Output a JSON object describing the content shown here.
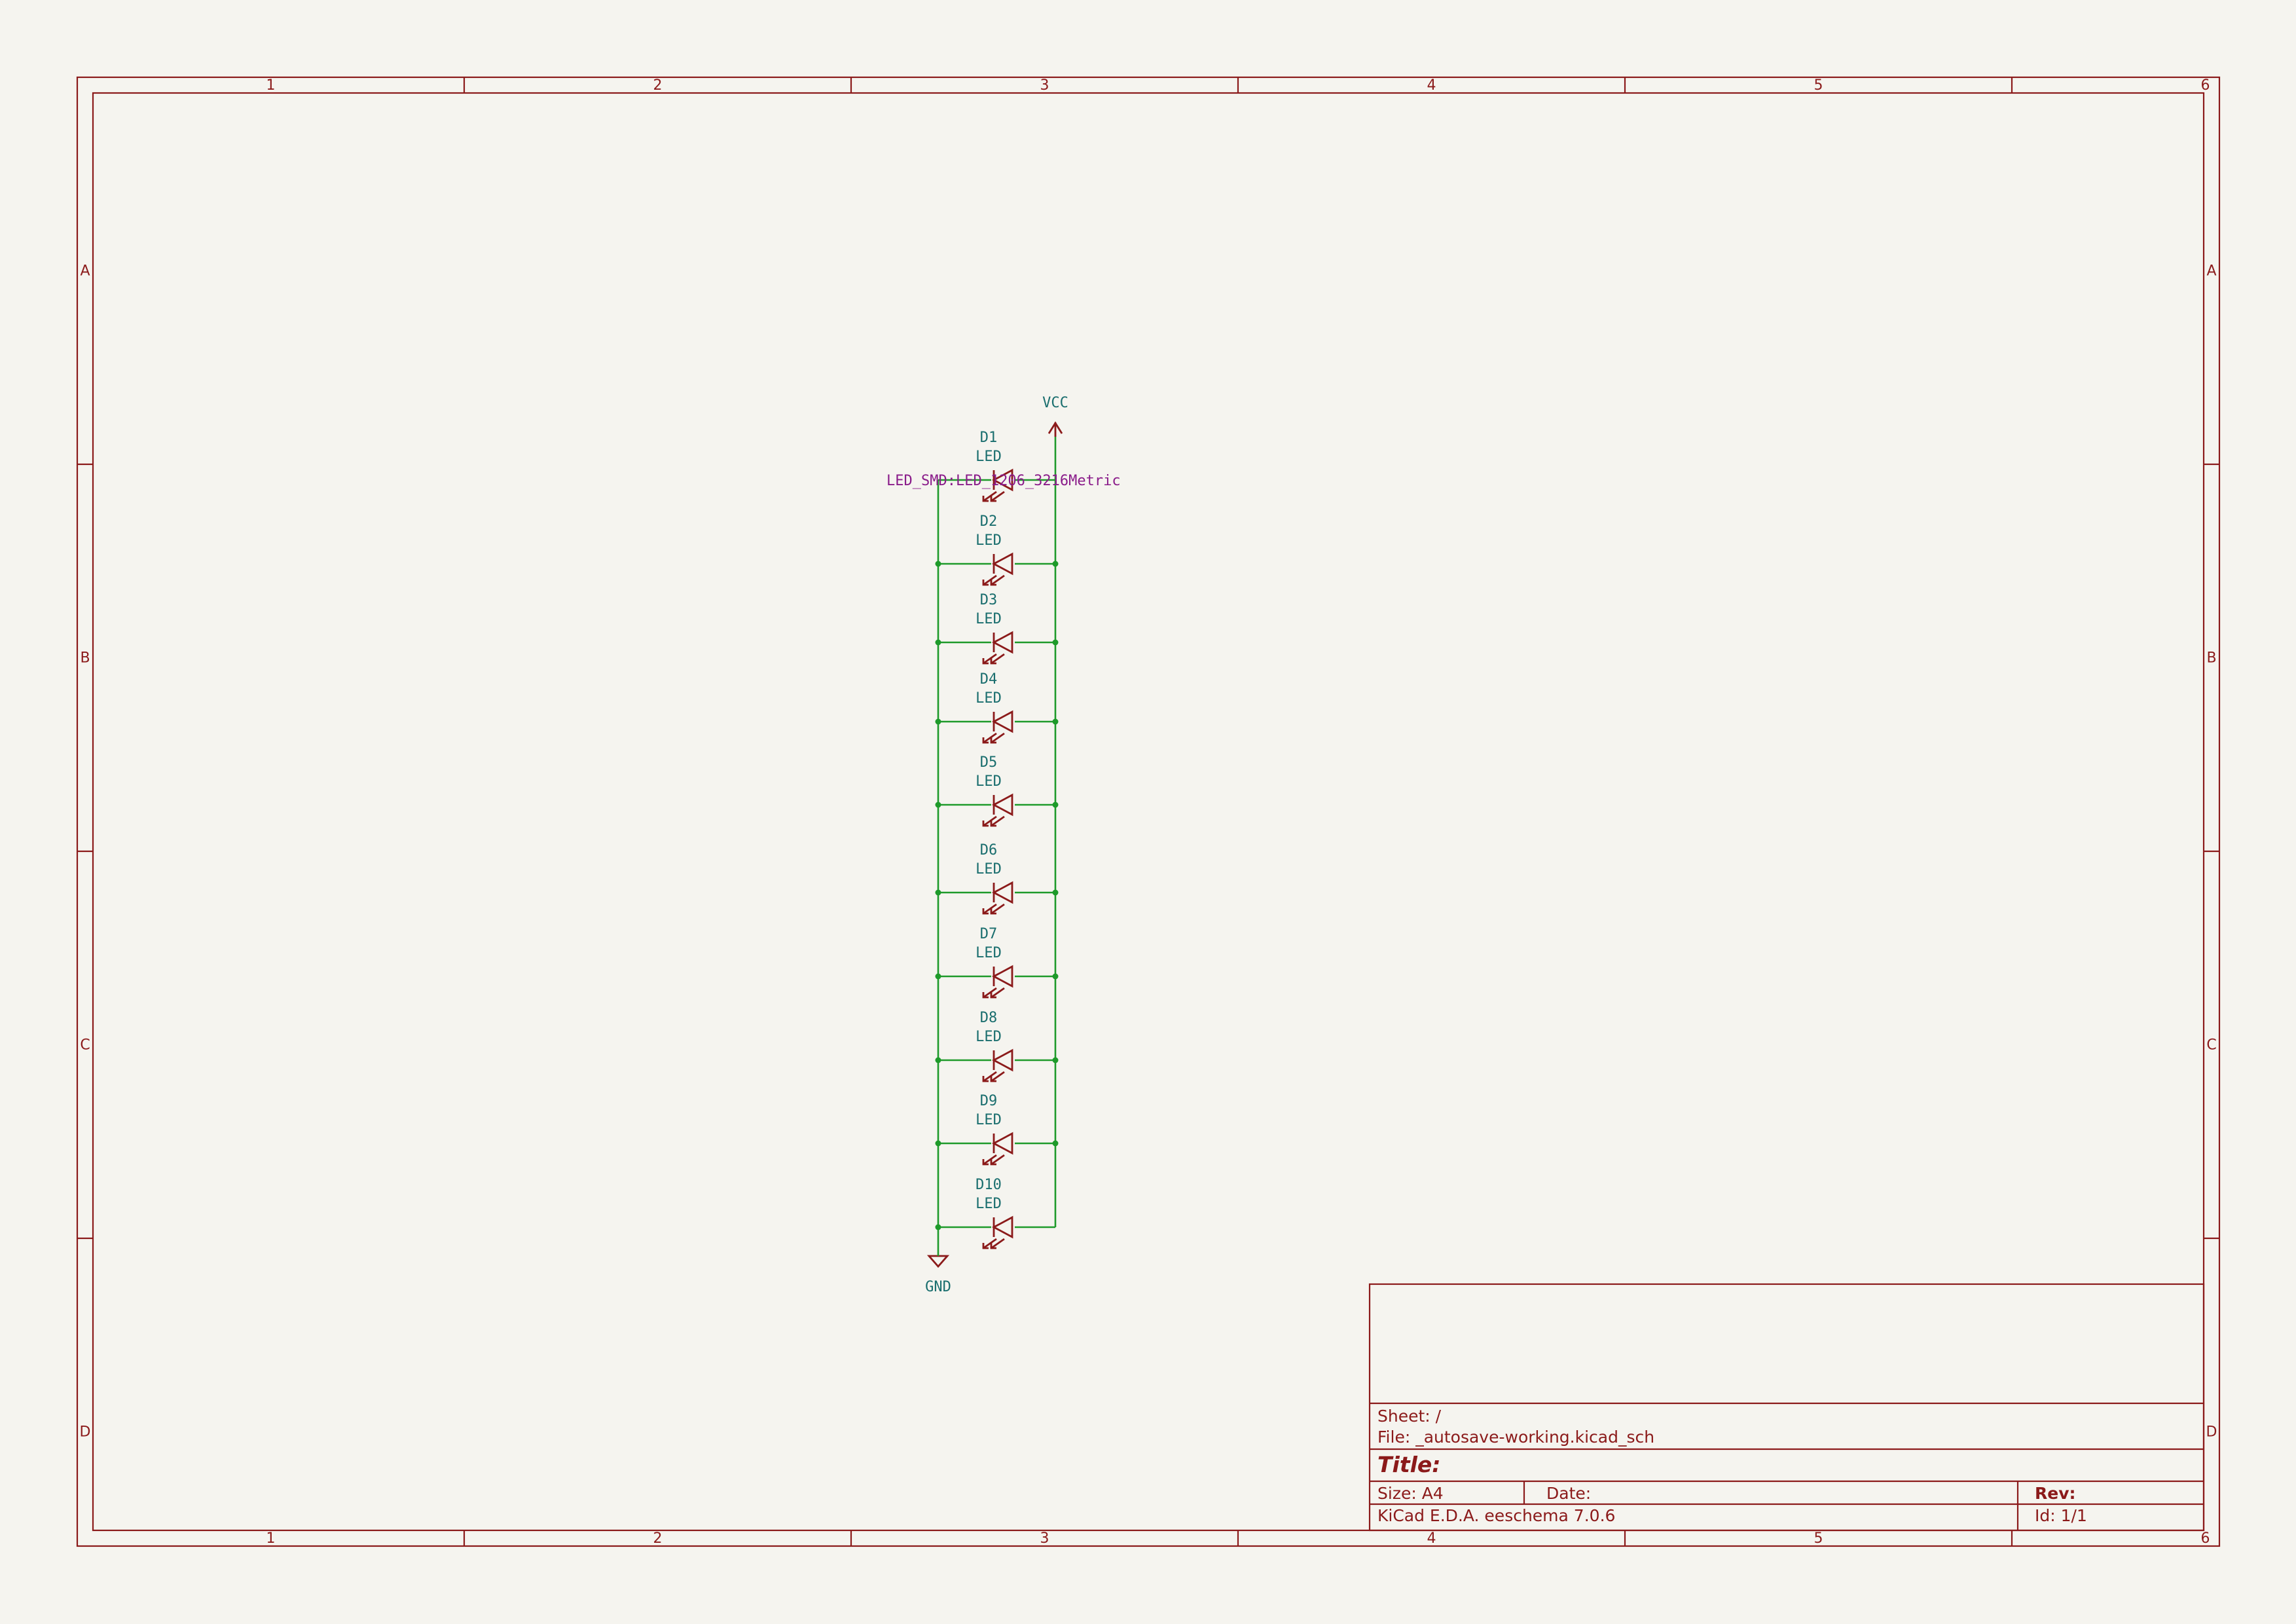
{
  "sheet_frame": {
    "columns": [
      "1",
      "2",
      "3",
      "4",
      "5",
      "6"
    ],
    "rows": [
      "A",
      "B",
      "C",
      "D"
    ],
    "frame_color": "#8b1a1a"
  },
  "schematic": {
    "wire_color": "#1e9a2a",
    "symbol_color": "#8b1a1a",
    "reference_color": "#1a6e6e",
    "footprint_color": "#8a1c8a",
    "power_top": {
      "label": "VCC"
    },
    "power_bottom": {
      "label": "GND"
    },
    "footprint_label": "LED_SMD:LED_1206_3216Metric",
    "leds": [
      {
        "ref": "D1",
        "value": "LED"
      },
      {
        "ref": "D2",
        "value": "LED"
      },
      {
        "ref": "D3",
        "value": "LED"
      },
      {
        "ref": "D4",
        "value": "LED"
      },
      {
        "ref": "D5",
        "value": "LED"
      },
      {
        "ref": "D6",
        "value": "LED"
      },
      {
        "ref": "D7",
        "value": "LED"
      },
      {
        "ref": "D8",
        "value": "LED"
      },
      {
        "ref": "D9",
        "value": "LED"
      },
      {
        "ref": "D10",
        "value": "LED"
      }
    ]
  },
  "title_block": {
    "sheet": "Sheet: /",
    "file": "File: _autosave-working.kicad_sch",
    "title": "Title:",
    "size": "Size: A4",
    "date": "Date:",
    "rev": "Rev:",
    "app": "KiCad E.D.A.  eeschema 7.0.6",
    "id": "Id: 1/1"
  }
}
